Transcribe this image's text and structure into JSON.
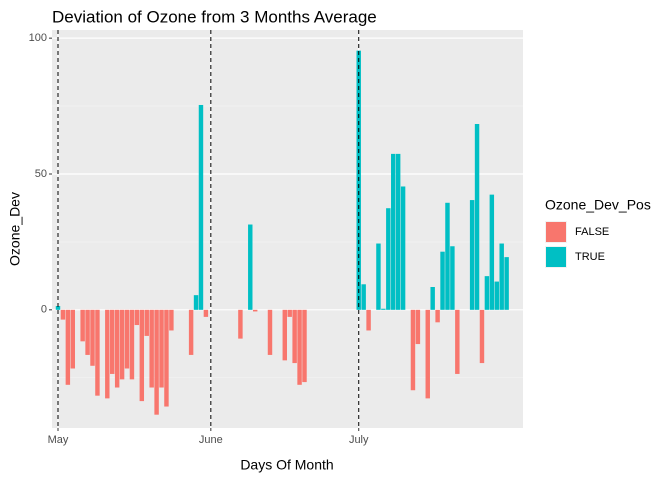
{
  "chart_data": {
    "type": "bar",
    "title": "Deviation of Ozone from 3 Months Average",
    "x_label": "Days Of Month",
    "y_label": "Ozone_Dev",
    "legend_title": "Ozone_Dev_Pos",
    "legend": [
      {
        "name": "FALSE",
        "color": "#F8766D"
      },
      {
        "name": "TRUE",
        "color": "#00BFC4"
      }
    ],
    "categories": [
      "May",
      null,
      null,
      null,
      null,
      null,
      null,
      null,
      null,
      null,
      null,
      null,
      null,
      null,
      null,
      null,
      null,
      null,
      null,
      null,
      null,
      null,
      null,
      null,
      null,
      null,
      null,
      null,
      null,
      null,
      null,
      "June",
      null,
      null,
      null,
      null,
      null,
      null,
      null,
      null,
      null,
      null,
      null,
      null,
      null,
      null,
      null,
      null,
      null,
      null,
      null,
      null,
      null,
      null,
      null,
      null,
      null,
      null,
      null,
      null,
      null,
      "July",
      null,
      null,
      null,
      null,
      null,
      null,
      null,
      null,
      null,
      null,
      null,
      null,
      null,
      null,
      null,
      null,
      null,
      null,
      null,
      null,
      null,
      null,
      null,
      null,
      null,
      null,
      null,
      null,
      null,
      null
    ],
    "values": [
      1.4,
      -3.6,
      -27.6,
      -21.6,
      null,
      -11.6,
      -16.6,
      -20.6,
      -31.6,
      null,
      -32.6,
      -23.6,
      -28.6,
      -25.6,
      -21.6,
      -25.6,
      -5.6,
      -33.6,
      -9.6,
      -28.6,
      -38.6,
      -28.6,
      -35.6,
      -7.6,
      null,
      null,
      null,
      -16.6,
      5.4,
      75.4,
      -2.6,
      null,
      null,
      null,
      null,
      null,
      null,
      -10.6,
      null,
      31.4,
      -0.6,
      null,
      null,
      -16.6,
      null,
      null,
      -18.6,
      -2.6,
      -19.6,
      -27.6,
      -26.6,
      null,
      null,
      null,
      null,
      null,
      null,
      null,
      null,
      null,
      null,
      95.4,
      9.4,
      -7.6,
      null,
      24.4,
      0.4,
      37.4,
      57.4,
      57.4,
      45.4,
      null,
      -29.6,
      -12.6,
      null,
      -32.6,
      8.4,
      -4.6,
      21.4,
      39.4,
      23.4,
      -23.6,
      null,
      null,
      40.4,
      68.4,
      -19.6,
      12.4,
      42.4,
      10.4,
      24.4,
      19.4
    ],
    "ylim": [
      -43.5,
      103
    ],
    "yticks": [
      0,
      50,
      100
    ],
    "minor_yticks": [
      -25,
      25,
      75
    ],
    "grid": true
  }
}
